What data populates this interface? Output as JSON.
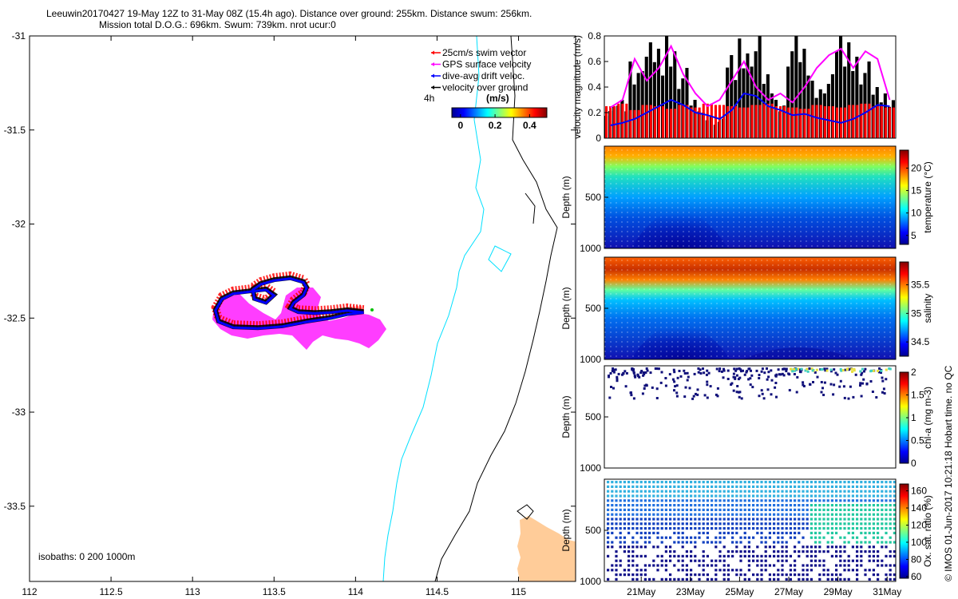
{
  "header": {
    "line1": "Leeuwin20170427 19-May 12Z to 31-May 08Z (15.4h ago). Distance over ground: 255km. Distance swum: 256km.",
    "line2": "Mission total D.O.G.: 696km. Swum: 739km. nrot ucur:0"
  },
  "side_note": "© IMOS 01-Jun-2017 10:21:18 Hobart time. no QC",
  "chart_data": [
    {
      "type": "map",
      "xlabel": "",
      "ylabel": "",
      "xlim": [
        112,
        115.35
      ],
      "ylim": [
        -33.9,
        -31.0
      ],
      "xticks": [
        "112",
        "112.5",
        "113",
        "113.5",
        "114",
        "114.5",
        "115"
      ],
      "yticks": [
        "-31",
        "-31.5",
        "-32",
        "-32.5",
        "-33",
        "-33.5"
      ],
      "legend": {
        "placement": "top-right",
        "entries": [
          "25cm/s swim vector",
          "GPS surface velocity",
          "dive-avg drift veloc.",
          "velocity over ground"
        ],
        "colors": [
          "#ff0000",
          "#ff00ff",
          "#0000ff",
          "#000000"
        ]
      },
      "time_marker": "4h",
      "colorbar": {
        "title": "(m/s)",
        "ticks": [
          "0",
          "0.2",
          "0.4"
        ],
        "range": [
          -0.05,
          0.5
        ]
      },
      "isobath_note": "isobaths: 0   200  1000m",
      "glider_track": [
        [
          114.05,
          -32.47
        ],
        [
          113.95,
          -32.46
        ],
        [
          113.85,
          -32.47
        ],
        [
          113.75,
          -32.475
        ],
        [
          113.65,
          -32.47
        ],
        [
          113.6,
          -32.45
        ],
        [
          113.62,
          -32.42
        ],
        [
          113.68,
          -32.38
        ],
        [
          113.7,
          -32.34
        ],
        [
          113.68,
          -32.31
        ],
        [
          113.6,
          -32.29
        ],
        [
          113.5,
          -32.3
        ],
        [
          113.42,
          -32.32
        ],
        [
          113.37,
          -32.35
        ],
        [
          113.38,
          -32.4
        ],
        [
          113.45,
          -32.42
        ],
        [
          113.5,
          -32.38
        ],
        [
          113.45,
          -32.35
        ],
        [
          113.35,
          -32.36
        ],
        [
          113.25,
          -32.37
        ],
        [
          113.18,
          -32.4
        ],
        [
          113.14,
          -32.46
        ],
        [
          113.16,
          -32.52
        ],
        [
          113.25,
          -32.55
        ],
        [
          113.4,
          -32.555
        ],
        [
          113.55,
          -32.545
        ],
        [
          113.7,
          -32.52
        ],
        [
          113.85,
          -32.5
        ],
        [
          113.95,
          -32.48
        ],
        [
          114.05,
          -32.47
        ]
      ]
    },
    {
      "type": "bar",
      "ylabel": "velocity magnitude (m/s)",
      "ylim": [
        0,
        0.8
      ],
      "yticks": [
        "0",
        "0.2",
        "0.4",
        "0.6",
        "0.8"
      ],
      "xlim": [
        19.5,
        31.35
      ],
      "series": [
        {
          "values": [
            0.25,
            0.27,
            0.22,
            0.26,
            0.25,
            0.23,
            0.26,
            0.24,
            0.27,
            0.26,
            0.25,
            0.24,
            0.26,
            0.27,
            0.25,
            0.24,
            0.23,
            0.26,
            0.25,
            0.24,
            0.26,
            0.27,
            0.25,
            0.24
          ]
        },
        {
          "values": [
            0.24,
            0.3,
            0.62,
            0.45,
            0.55,
            0.72,
            0.5,
            0.35,
            0.25,
            0.3,
            0.45,
            0.6,
            0.4,
            0.3,
            0.35,
            0.28,
            0.4,
            0.55,
            0.65,
            0.7,
            0.55,
            0.68,
            0.62,
            0.3
          ]
        },
        {
          "values": [
            0.1,
            0.12,
            0.15,
            0.2,
            0.25,
            0.3,
            0.26,
            0.2,
            0.18,
            0.15,
            0.22,
            0.35,
            0.33,
            0.25,
            0.22,
            0.18,
            0.19,
            0.16,
            0.14,
            0.12,
            0.15,
            0.2,
            0.26,
            0.25
          ]
        },
        {
          "values": [
            0.25,
            0.3,
            0.6,
            0.75,
            0.7,
            0.8,
            0.55,
            0.3,
            0.2,
            0.15,
            0.65,
            0.78,
            0.8,
            0.5,
            0.3,
            0.8,
            0.7,
            0.45,
            0.5,
            0.8,
            0.75,
            0.6,
            0.4,
            0.35
          ]
        }
      ]
    },
    {
      "type": "heatmap",
      "ylabel": "Depth (m)",
      "colorbar_label": "temperature (°C)",
      "yticks": [
        "500",
        "1000"
      ],
      "cticks": [
        "5",
        "10",
        "15",
        "20"
      ],
      "crange": [
        3,
        24
      ]
    },
    {
      "type": "heatmap",
      "ylabel": "Depth (m)",
      "colorbar_label": "salinity",
      "yticks": [
        "500",
        "1000"
      ],
      "cticks": [
        "34.5",
        "35",
        "35.5"
      ],
      "crange": [
        34.25,
        35.9
      ]
    },
    {
      "type": "scatter",
      "ylabel": "Depth (m)",
      "colorbar_label": "chl-a (mg m-3)",
      "yticks": [
        "500",
        "1000"
      ],
      "cticks": [
        "0",
        "0.5",
        "1",
        "1.5",
        "2"
      ],
      "crange": [
        0,
        2
      ]
    },
    {
      "type": "scatter",
      "ylabel": "Depth (m)",
      "colorbar_label": "Ox. sat. ratio (%)",
      "yticks": [
        "500",
        "1000"
      ],
      "cticks": [
        "60",
        "80",
        "100",
        "120",
        "140",
        "160"
      ],
      "crange": [
        58,
        168
      ],
      "xticks": [
        "21May",
        "23May",
        "25May",
        "27May",
        "29May",
        "31May"
      ],
      "xtick_days": [
        21,
        23,
        25,
        27,
        29,
        31
      ]
    }
  ]
}
